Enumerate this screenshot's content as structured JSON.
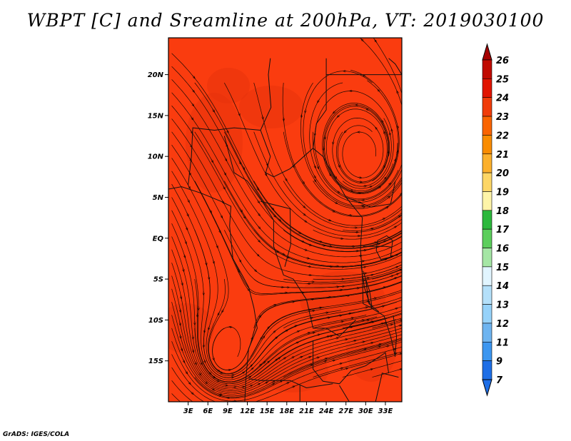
{
  "title": "WBPT [C] and Sreamline at 200hPa, VT: 2019030100",
  "credit": "GrADS: IGES/COLA",
  "map": {
    "lat_labels": [
      "20N",
      "15N",
      "10N",
      "5N",
      "EQ",
      "5S",
      "10S",
      "15S"
    ],
    "lon_labels": [
      "3E",
      "6E",
      "9E",
      "12E",
      "15E",
      "18E",
      "21E",
      "24E",
      "27E",
      "30E",
      "33E"
    ],
    "fill_color": "#fa3c0f",
    "vortices": [
      {
        "name": "cyclonic-center-north",
        "lon": 29.5,
        "lat": 10.0
      },
      {
        "name": "anticyclone-center-south",
        "lon": 8.5,
        "lat": -14.5
      }
    ]
  },
  "colorbar": {
    "labels": [
      "26",
      "25",
      "24",
      "23",
      "22",
      "21",
      "20",
      "19",
      "18",
      "17",
      "16",
      "15",
      "14",
      "13",
      "12",
      "11",
      "9",
      "7"
    ],
    "colors": [
      "#a50000",
      "#c00a00",
      "#e11400",
      "#f03c0a",
      "#fa6400",
      "#fa8c00",
      "#fcb02c",
      "#fdd666",
      "#fef4a8",
      "#2db83d",
      "#5cce5c",
      "#a5e6a5",
      "#e1f5ff",
      "#b4e0fa",
      "#96d2fa",
      "#6eb4f0",
      "#3c96f0",
      "#1e6ee6"
    ],
    "top_arrow_color": "#a50000",
    "bottom_arrow_color": "#1e6ee6"
  }
}
